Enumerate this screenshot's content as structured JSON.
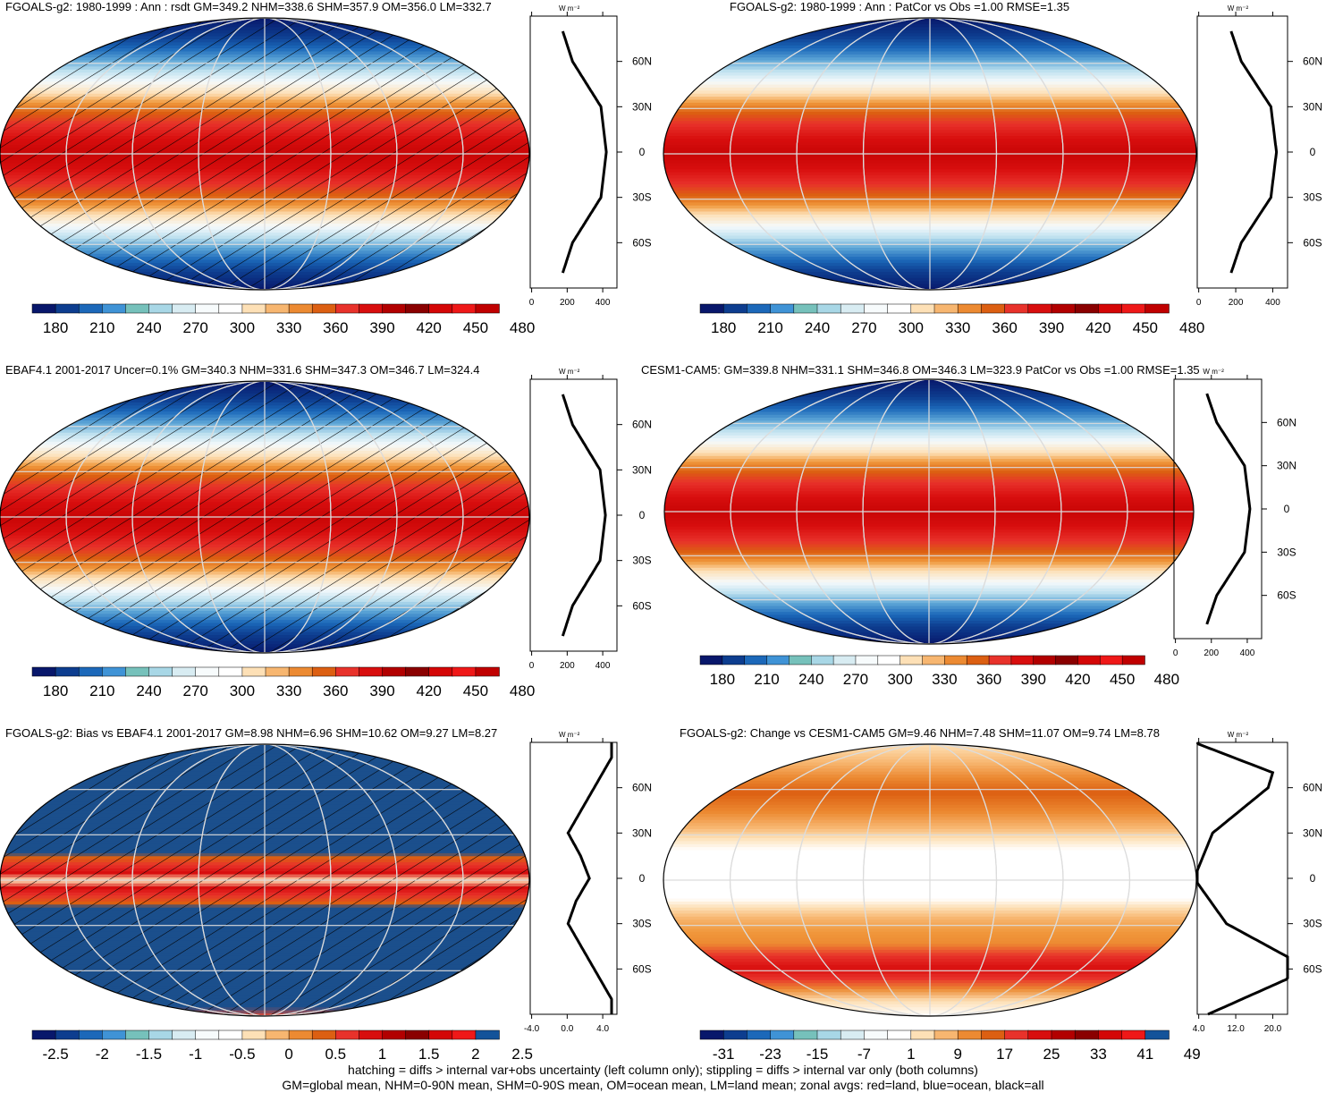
{
  "colors": {
    "standard": [
      "#08176b",
      "#0d3d8f",
      "#1c68b9",
      "#3f93d6",
      "#76c1bb",
      "#a8d7e6",
      "#d8ecf2",
      "#f7fbfc",
      "#ffffff",
      "#fde0b6",
      "#f7b670",
      "#ec8a32",
      "#dc5f12",
      "#e8322b",
      "#d80e0e",
      "#b20000",
      "#8a0000",
      "#d40606",
      "#ef1818",
      "#13539a"
    ],
    "standard_no_last": [
      "#08176b",
      "#0d3d8f",
      "#1c68b9",
      "#3f93d6",
      "#76c1bb",
      "#a8d7e6",
      "#d8ecf2",
      "#f7fbfc",
      "#ffffff",
      "#fde0b6",
      "#f7b670",
      "#ec8a32",
      "#dc5f12",
      "#e8322b",
      "#d80e0e",
      "#b20000",
      "#8a0000",
      "#d40606",
      "#ef1818",
      "#c00000"
    ]
  },
  "panels": [
    {
      "id": "model-climatology",
      "title": "FGOALS-g2: 1980-1999 : Ann : rsdt GM=349.2 NHM=338.6 SHM=357.9 OM=356.0 LM=332.7",
      "colorbar_labels": [
        "180",
        "210",
        "240",
        "270",
        "300",
        "330",
        "360",
        "390",
        "420",
        "450",
        "480"
      ],
      "zonal_xticks": [
        "0",
        "200",
        "400"
      ],
      "zonal_unit": "W m⁻²"
    },
    {
      "id": "model-vs-obs",
      "title": "FGOALS-g2: 1980-1999 : Ann : PatCor vs Obs =1.00 RMSE=1.35",
      "colorbar_labels": [
        "180",
        "210",
        "240",
        "270",
        "300",
        "330",
        "360",
        "390",
        "420",
        "450",
        "480"
      ],
      "zonal_xticks": [
        "0",
        "200",
        "400"
      ],
      "zonal_unit": "W m⁻²"
    },
    {
      "id": "obs-climatology",
      "title": "EBAF4.1 2001-2017 Uncer=0.1% GM=340.3 NHM=331.6 SHM=347.3 OM=346.7 LM=324.4",
      "colorbar_labels": [
        "180",
        "210",
        "240",
        "270",
        "300",
        "330",
        "360",
        "390",
        "420",
        "450",
        "480"
      ],
      "zonal_xticks": [
        "0",
        "200",
        "400"
      ],
      "zonal_unit": "W m⁻²"
    },
    {
      "id": "cesm-climatology",
      "title": "CESM1-CAM5: GM=339.8 NHM=331.1 SHM=346.8 OM=346.3 LM=323.9 PatCor vs Obs =1.00 RMSE=1.35",
      "colorbar_labels": [
        "180",
        "210",
        "240",
        "270",
        "300",
        "330",
        "360",
        "390",
        "420",
        "450",
        "480"
      ],
      "zonal_xticks": [
        "0",
        "200",
        "400"
      ],
      "zonal_unit": "W m⁻²"
    },
    {
      "id": "bias",
      "title": "FGOALS-g2: Bias vs EBAF4.1 2001-2017 GM=8.98 NHM=6.96 SHM=10.62 OM=9.27 LM=8.27",
      "colorbar_labels": [
        "-2.5",
        "-2",
        "-1.5",
        "-1",
        "-0.5",
        "0",
        "0.5",
        "1",
        "1.5",
        "2",
        "2.5"
      ],
      "zonal_xticks": [
        "-4.0",
        "0.0",
        "4.0"
      ],
      "zonal_unit": "W m⁻²"
    },
    {
      "id": "change",
      "title": "FGOALS-g2: Change vs CESM1-CAM5 GM=9.46 NHM=7.48 SHM=11.07 OM=9.74 LM=8.78",
      "colorbar_labels": [
        "-31",
        "-23",
        "-15",
        "-7",
        "1",
        "9",
        "17",
        "25",
        "33",
        "41",
        "49"
      ],
      "zonal_xticks": [
        "4.0",
        "12.0",
        "20.0"
      ],
      "zonal_unit": "W m⁻²"
    }
  ],
  "lat_labels": [
    "60N",
    "30N",
    "0",
    "30S",
    "60S"
  ],
  "footer": {
    "line1": "hatching = diffs > internal var+obs uncertainty (left column only); stippling = diffs > internal var only (both columns)",
    "line2": "GM=global mean, NHM=0-90N mean, SHM=0-90S mean, OM=ocean mean, LM=land mean; zonal avgs: red=land, blue=ocean, black=all"
  },
  "chart_data": [
    {
      "type": "heatmap",
      "title": "FGOALS-g2: 1980-1999 : Ann : rsdt GM=349.2 NHM=338.6 SHM=357.9 OM=356.0 LM=332.7",
      "units": "W m⁻²",
      "lat": [
        -80,
        -60,
        -30,
        0,
        30,
        60,
        80
      ],
      "zonal_mean": [
        175,
        230,
        390,
        420,
        390,
        230,
        175
      ],
      "colorbar": [
        "180",
        "210",
        "240",
        "270",
        "300",
        "330",
        "360",
        "390",
        "420",
        "450",
        "480"
      ]
    },
    {
      "type": "heatmap",
      "title": "FGOALS-g2: 1980-1999 : Ann : PatCor vs Obs =1.00 RMSE=1.35",
      "units": "W m⁻²",
      "lat": [
        -80,
        -60,
        -30,
        0,
        30,
        60,
        80
      ],
      "zonal_mean": [
        175,
        230,
        390,
        420,
        390,
        230,
        175
      ]
    },
    {
      "type": "heatmap",
      "title": "EBAF4.1 2001-2017 Uncer=0.1% GM=340.3 NHM=331.6 SHM=347.3 OM=346.7 LM=324.4",
      "units": "W m⁻²",
      "lat": [
        -80,
        -60,
        -30,
        0,
        30,
        60,
        80
      ],
      "zonal_mean": [
        175,
        230,
        385,
        415,
        385,
        230,
        175
      ]
    },
    {
      "type": "heatmap",
      "title": "CESM1-CAM5: GM=339.8 NHM=331.1 SHM=346.8 OM=346.3 LM=323.9 PatCor vs Obs =1.00 RMSE=1.35",
      "units": "W m⁻²",
      "lat": [
        -80,
        -60,
        -30,
        0,
        30,
        60,
        80
      ],
      "zonal_mean": [
        175,
        230,
        385,
        415,
        385,
        230,
        175
      ]
    },
    {
      "type": "heatmap",
      "title": "FGOALS-g2: Bias vs EBAF4.1 2001-2017 GM=8.98 NHM=6.96 SHM=10.62 OM=9.27 LM=8.27",
      "units": "W m⁻²",
      "lat": [
        -90,
        -80,
        -30,
        -15,
        0,
        15,
        30,
        80,
        90
      ],
      "zonal_mean": [
        5,
        5,
        0.1,
        1.0,
        2.5,
        1.5,
        0.1,
        5,
        5
      ]
    },
    {
      "type": "heatmap",
      "title": "FGOALS-g2: Change vs CESM1-CAM5 GM=9.46 NHM=7.48 SHM=11.07 OM=9.74 LM=8.78",
      "units": "W m⁻²",
      "lat": [
        -90,
        -60,
        -30,
        0,
        30,
        60,
        70,
        90
      ],
      "zonal_mean": [
        6,
        28,
        10,
        3,
        7,
        19,
        20,
        3
      ]
    }
  ]
}
